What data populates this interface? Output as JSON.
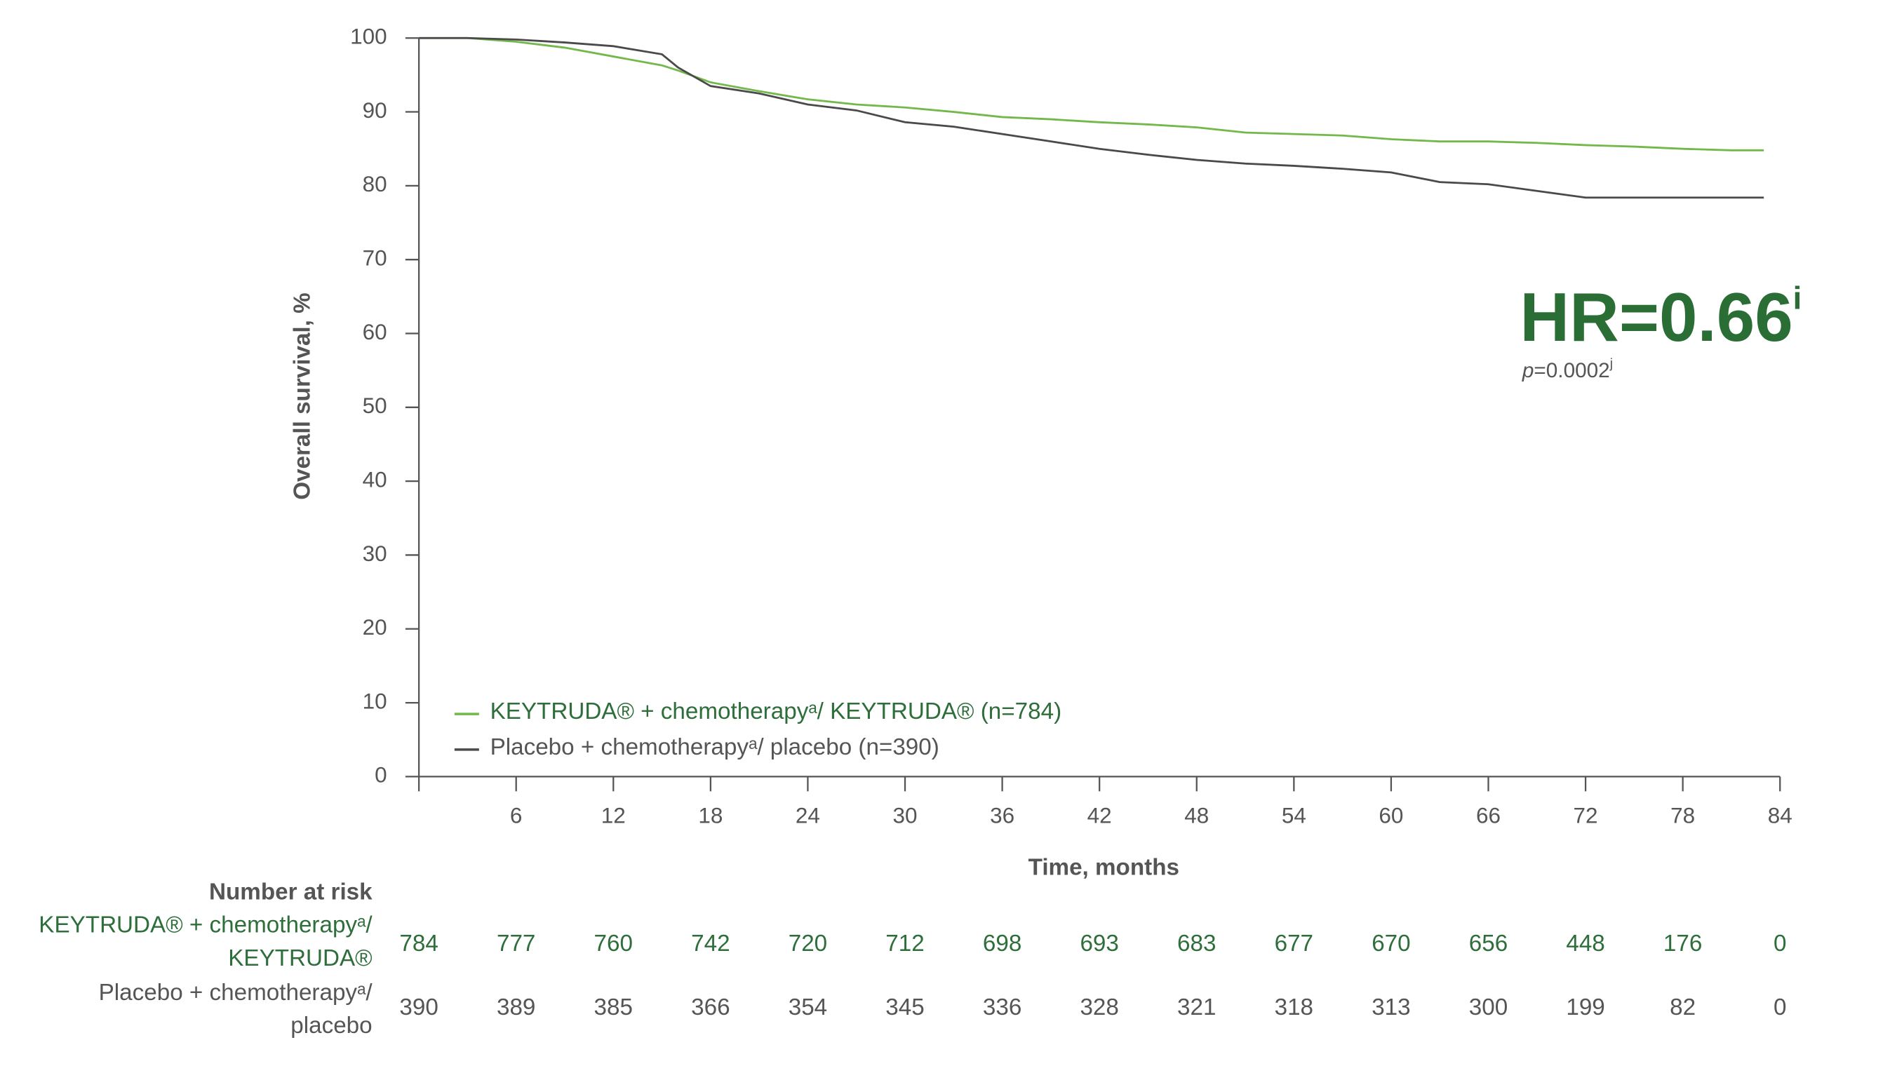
{
  "chart_data": {
    "type": "line",
    "ylabel": "Overall survival, %",
    "xlabel": "Time, months",
    "xlim": [
      0,
      84
    ],
    "xticks": [
      6,
      12,
      18,
      24,
      30,
      36,
      42,
      48,
      54,
      60,
      66,
      72,
      78,
      84
    ],
    "ylim": [
      0,
      100
    ],
    "yticks": [
      0,
      10,
      20,
      30,
      40,
      50,
      60,
      70,
      80,
      90,
      100
    ],
    "legend": "lower left",
    "x": [
      0,
      3,
      6,
      9,
      12,
      15,
      16,
      18,
      21,
      24,
      27,
      30,
      33,
      36,
      39,
      42,
      45,
      48,
      51,
      54,
      57,
      60,
      63,
      66,
      69,
      72,
      75,
      78,
      81,
      83
    ],
    "series": [
      {
        "name": "KEYTRUDA® + chemotherapyᵃ/ KEYTRUDA® (n=784)",
        "color": "#72b84a",
        "values": [
          100,
          100,
          99.5,
          98.7,
          97.5,
          96.3,
          95.6,
          94,
          92.8,
          91.7,
          91,
          90.6,
          90,
          89.3,
          89,
          88.6,
          88.3,
          87.9,
          87.2,
          87,
          86.8,
          86.3,
          86,
          86,
          85.8,
          85.5,
          85.3,
          85,
          84.8,
          84.8
        ]
      },
      {
        "name": "Placebo + chemotherapyᵃ/ placebo (n=390)",
        "color": "#4a4a4a",
        "values": [
          100,
          100,
          99.8,
          99.4,
          98.9,
          97.8,
          96,
          93.5,
          92.5,
          91,
          90.2,
          88.6,
          88,
          87,
          86,
          85,
          84.2,
          83.5,
          83,
          82.7,
          82.3,
          81.8,
          80.5,
          80.2,
          79.3,
          78.4,
          78.4,
          78.4,
          78.4,
          78.4
        ]
      }
    ],
    "annotation": {
      "hr": "HR=0.66",
      "hr_note": "i",
      "p_label": "p",
      "p_value": "=0.0002",
      "p_note": "j"
    },
    "risk_table": {
      "title": "Number at risk",
      "times": [
        0,
        6,
        12,
        18,
        24,
        30,
        36,
        42,
        48,
        54,
        60,
        66,
        72,
        78,
        84
      ],
      "rows": [
        {
          "label_lines": [
            "KEYTRUDA®  + chemotherapyᵃ/",
            "KEYTRUDA®"
          ],
          "color": "#2e6e3a",
          "values": [
            784,
            777,
            760,
            742,
            720,
            712,
            698,
            693,
            683,
            677,
            670,
            656,
            448,
            176,
            0
          ]
        },
        {
          "label_lines": [
            "Placebo + chemotherapyᵃ/",
            "placebo"
          ],
          "color": "#555555",
          "values": [
            390,
            389,
            385,
            366,
            354,
            345,
            336,
            328,
            321,
            318,
            313,
            300,
            199,
            82,
            0
          ]
        }
      ]
    }
  }
}
